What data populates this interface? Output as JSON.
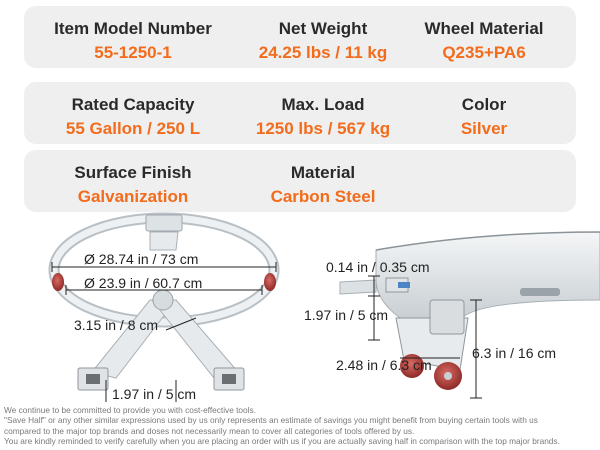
{
  "specs": {
    "item_model_number": {
      "label": "Item Model Number",
      "value": "55-1250-1"
    },
    "net_weight": {
      "label": "Net Weight",
      "value": "24.25 lbs / 11 kg"
    },
    "wheel_material": {
      "label": "Wheel Material",
      "value": "Q235+PA6"
    },
    "rated_capacity": {
      "label": "Rated Capacity",
      "value": "55 Gallon / 250 L"
    },
    "max_load": {
      "label": "Max. Load",
      "value": "1250 lbs / 567 kg"
    },
    "color": {
      "label": "Color",
      "value": "Silver"
    },
    "surface_finish": {
      "label": "Surface Finish",
      "value": "Galvanization"
    },
    "material": {
      "label": "Material",
      "value": "Carbon Steel"
    }
  },
  "dimensions": {
    "outer_diameter": "Ø 28.74 in / 73 cm",
    "inner_diameter": "Ø 23.9 in / 60.7 cm",
    "arm_width": "3.15 in / 8 cm",
    "caster_plate": "1.97 in / 5 cm",
    "ring_thickness": "0.14 in / 0.35 cm",
    "flange_height": "1.97 in / 5 cm",
    "wheel_diameter": "2.48 in / 6.3 cm",
    "total_height": "6.3 in / 16 cm"
  },
  "colors": {
    "accent": "#f26c1c",
    "label_text": "#2a2a2a",
    "panel_background": "#efefef",
    "wheel": "#b23a36"
  },
  "disclaimer": [
    "We continue to be committed to provide you with cost-effective tools.",
    "\"Save Half\" or any other similar expressions used by us only represents an estimate of savings you might benefit from buying certain tools with us",
    "compared to the major top brands and doses not necessarily mean to cover all categories of tools offered by us.",
    "You are kindly reminded to verify carefully when you are placing an order with us if you are actually saving half in comparison with the top major brands."
  ]
}
